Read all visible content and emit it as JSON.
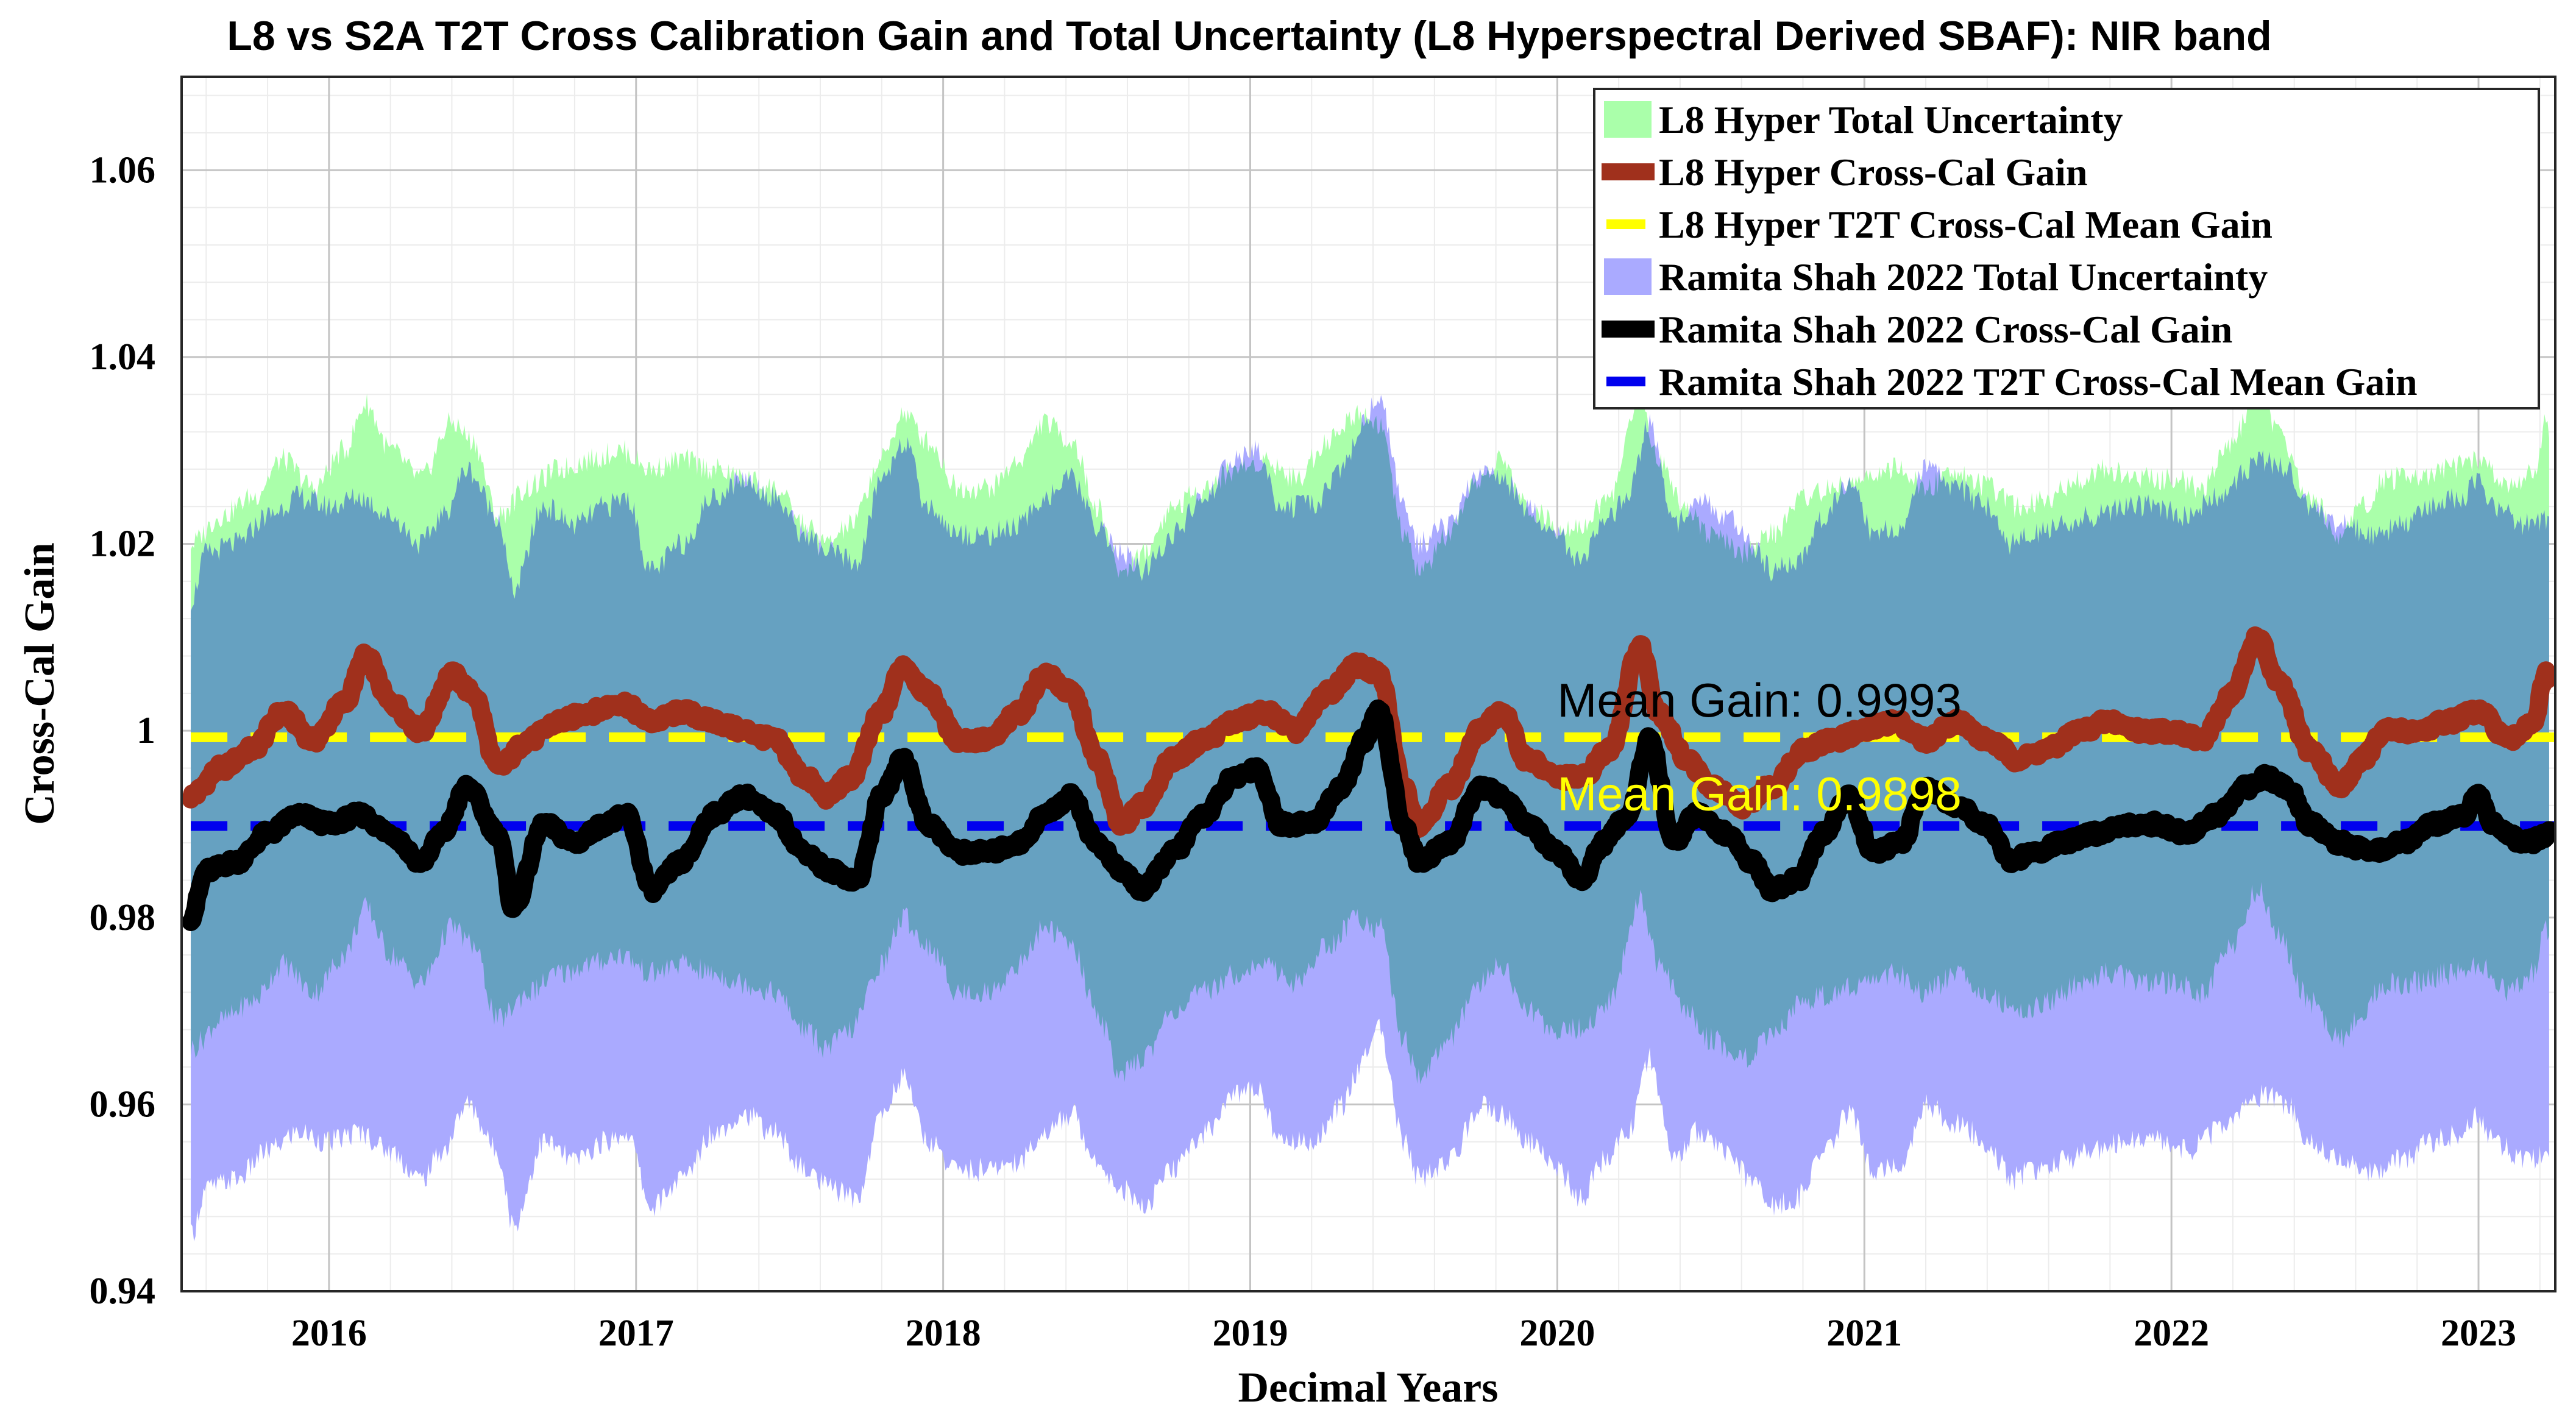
{
  "chart_data": {
    "type": "line",
    "title": "L8 vs S2A T2T Cross Calibration Gain and Total Uncertainty (L8 Hyperspectral Derived SBAF): NIR band",
    "xlabel": "Decimal Years",
    "ylabel": "Cross-Cal Gain",
    "xlim": [
      2015.52,
      2023.25
    ],
    "ylim": [
      0.94,
      1.07
    ],
    "xticks": [
      2016,
      2017,
      2018,
      2019,
      2020,
      2021,
      2022,
      2023
    ],
    "xtick_labels": [
      "2016",
      "2017",
      "2018",
      "2019",
      "2020",
      "2021",
      "2022",
      "2023"
    ],
    "yticks": [
      0.94,
      0.96,
      0.98,
      1.0,
      1.02,
      1.04,
      1.06
    ],
    "ytick_labels": [
      "0.94",
      "0.96",
      "0.98",
      "1",
      "1.02",
      "1.04",
      "1.06"
    ],
    "grid": true,
    "legend_position": "top-right",
    "colors": {
      "l8_band": "#aaffaa",
      "l8_line": "#a0301c",
      "l8_mean": "#ffff00",
      "rs_band": "#aaaaff",
      "rs_line": "#000000",
      "rs_mean": "#0000ee",
      "overlap": "#5aa0b6"
    },
    "legend": [
      {
        "label": "L8 Hyper Total Uncertainty",
        "kind": "patch",
        "color": "#aaffaa"
      },
      {
        "label": "L8 Hyper Cross-Cal Gain",
        "kind": "line",
        "color": "#a0301c"
      },
      {
        "label": "L8 Hyper T2T Cross-Cal Mean Gain",
        "kind": "dash",
        "color": "#ffff00"
      },
      {
        "label": "Ramita Shah 2022 Total Uncertainty",
        "kind": "patch",
        "color": "#aaaaff"
      },
      {
        "label": "Ramita Shah 2022 Cross-Cal Gain",
        "kind": "line",
        "color": "#000000"
      },
      {
        "label": "Ramita Shah 2022 T2T Cross-Cal Mean Gain",
        "kind": "dash",
        "color": "#0000ee"
      }
    ],
    "annotations": [
      {
        "text": "Mean Gain: 0.9993",
        "x": 2020.0,
        "y": 1.0015,
        "color": "#000000"
      },
      {
        "text": "Mean Gain: 0.9898",
        "x": 2020.0,
        "y": 0.9915,
        "color": "#ffff00"
      }
    ],
    "series": [
      {
        "name": "L8 Hyper Cross-Cal Gain",
        "mean": 0.9993,
        "uncertainty_band": "L8 Hyper Total Uncertainty",
        "band_upper_offset": 0.027,
        "band_lower_offset": 0.027,
        "x": [
          2015.55,
          2015.65,
          2015.75,
          2015.85,
          2015.95,
          2016.05,
          2016.12,
          2016.2,
          2016.3,
          2016.4,
          2016.47,
          2016.55,
          2016.65,
          2016.75,
          2016.85,
          2016.95,
          2017.05,
          2017.15,
          2017.25,
          2017.35,
          2017.45,
          2017.55,
          2017.62,
          2017.7,
          2017.8,
          2017.87,
          2017.95,
          2018.05,
          2018.15,
          2018.25,
          2018.33,
          2018.42,
          2018.5,
          2018.58,
          2018.65,
          2018.75,
          2018.85,
          2018.95,
          2019.05,
          2019.15,
          2019.25,
          2019.35,
          2019.42,
          2019.5,
          2019.55,
          2019.65,
          2019.75,
          2019.82,
          2019.9,
          2020.0,
          2020.08,
          2020.17,
          2020.27,
          2020.33,
          2020.42,
          2020.5,
          2020.6,
          2020.7,
          2020.8,
          2020.9,
          2021.0,
          2021.1,
          2021.2,
          2021.3,
          2021.4,
          2021.5,
          2021.6,
          2021.7,
          2021.8,
          2021.9,
          2022.0,
          2022.1,
          2022.2,
          2022.28,
          2022.35,
          2022.45,
          2022.55,
          2022.62,
          2022.7,
          2022.8,
          2022.9,
          2023.0,
          2023.1,
          2023.18,
          2023.22,
          2023.25
        ],
        "y": [
          0.993,
          0.996,
          0.998,
          1.002,
          0.999,
          1.003,
          1.008,
          1.003,
          1.0,
          1.006,
          1.004,
          0.996,
          0.999,
          1.001,
          1.002,
          1.003,
          1.001,
          1.002,
          1.001,
          1.0,
          0.999,
          0.995,
          0.993,
          0.995,
          1.002,
          1.007,
          1.004,
          0.999,
          0.999,
          1.002,
          1.006,
          1.004,
          0.997,
          0.99,
          0.992,
          0.997,
          0.999,
          1.001,
          1.002,
          1.0,
          1.004,
          1.007,
          1.006,
          0.994,
          0.99,
          0.994,
          1.0,
          1.002,
          0.997,
          0.995,
          0.995,
          0.998,
          1.009,
          1.002,
          0.997,
          0.994,
          0.992,
          0.994,
          0.998,
          0.999,
          1.0,
          1.001,
          0.999,
          1.001,
          0.999,
          0.997,
          0.998,
          1.0,
          1.001,
          1.0,
          1.0,
          0.999,
          1.004,
          1.01,
          1.005,
          0.998,
          0.994,
          0.997,
          1.0,
          1.0,
          1.001,
          1.002,
          0.999,
          1.001,
          1.006,
          1.003
        ]
      },
      {
        "name": "Ramita Shah 2022 Cross-Cal Gain",
        "mean": 0.9898,
        "uncertainty_band": "Ramita Shah 2022 Total Uncertainty",
        "band_upper_offset": 0.034,
        "band_lower_offset": 0.034,
        "x": [
          2015.55,
          2015.6,
          2015.7,
          2015.8,
          2015.9,
          2016.0,
          2016.1,
          2016.2,
          2016.3,
          2016.37,
          2016.45,
          2016.55,
          2016.6,
          2016.7,
          2016.8,
          2016.9,
          2016.97,
          2017.05,
          2017.15,
          2017.25,
          2017.35,
          2017.45,
          2017.55,
          2017.63,
          2017.72,
          2017.8,
          2017.87,
          2017.95,
          2018.05,
          2018.15,
          2018.25,
          2018.33,
          2018.42,
          2018.5,
          2018.58,
          2018.65,
          2018.75,
          2018.85,
          2018.95,
          2019.02,
          2019.1,
          2019.2,
          2019.3,
          2019.37,
          2019.42,
          2019.5,
          2019.55,
          2019.65,
          2019.75,
          2019.82,
          2019.9,
          2020.0,
          2020.08,
          2020.15,
          2020.23,
          2020.3,
          2020.38,
          2020.45,
          2020.55,
          2020.63,
          2020.7,
          2020.78,
          2020.87,
          2020.95,
          2021.03,
          2021.12,
          2021.2,
          2021.3,
          2021.4,
          2021.48,
          2021.55,
          2021.65,
          2021.75,
          2021.85,
          2021.95,
          2022.05,
          2022.15,
          2022.25,
          2022.3,
          2022.38,
          2022.45,
          2022.55,
          2022.65,
          2022.75,
          2022.85,
          2022.95,
          2023.0,
          2023.05,
          2023.15,
          2023.25
        ],
        "y": [
          0.98,
          0.985,
          0.986,
          0.989,
          0.991,
          0.99,
          0.991,
          0.989,
          0.986,
          0.989,
          0.994,
          0.989,
          0.981,
          0.99,
          0.988,
          0.99,
          0.991,
          0.983,
          0.986,
          0.991,
          0.993,
          0.991,
          0.987,
          0.985,
          0.984,
          0.993,
          0.997,
          0.99,
          0.987,
          0.987,
          0.988,
          0.991,
          0.993,
          0.988,
          0.985,
          0.983,
          0.987,
          0.991,
          0.995,
          0.996,
          0.99,
          0.99,
          0.994,
          0.999,
          1.002,
          0.99,
          0.986,
          0.988,
          0.994,
          0.993,
          0.99,
          0.987,
          0.984,
          0.988,
          0.991,
          0.999,
          0.988,
          0.991,
          0.989,
          0.986,
          0.983,
          0.984,
          0.989,
          0.993,
          0.987,
          0.988,
          0.994,
          0.992,
          0.99,
          0.986,
          0.987,
          0.988,
          0.989,
          0.99,
          0.99,
          0.989,
          0.991,
          0.994,
          0.995,
          0.994,
          0.99,
          0.988,
          0.987,
          0.988,
          0.99,
          0.991,
          0.993,
          0.99,
          0.988,
          0.989
        ]
      }
    ]
  }
}
